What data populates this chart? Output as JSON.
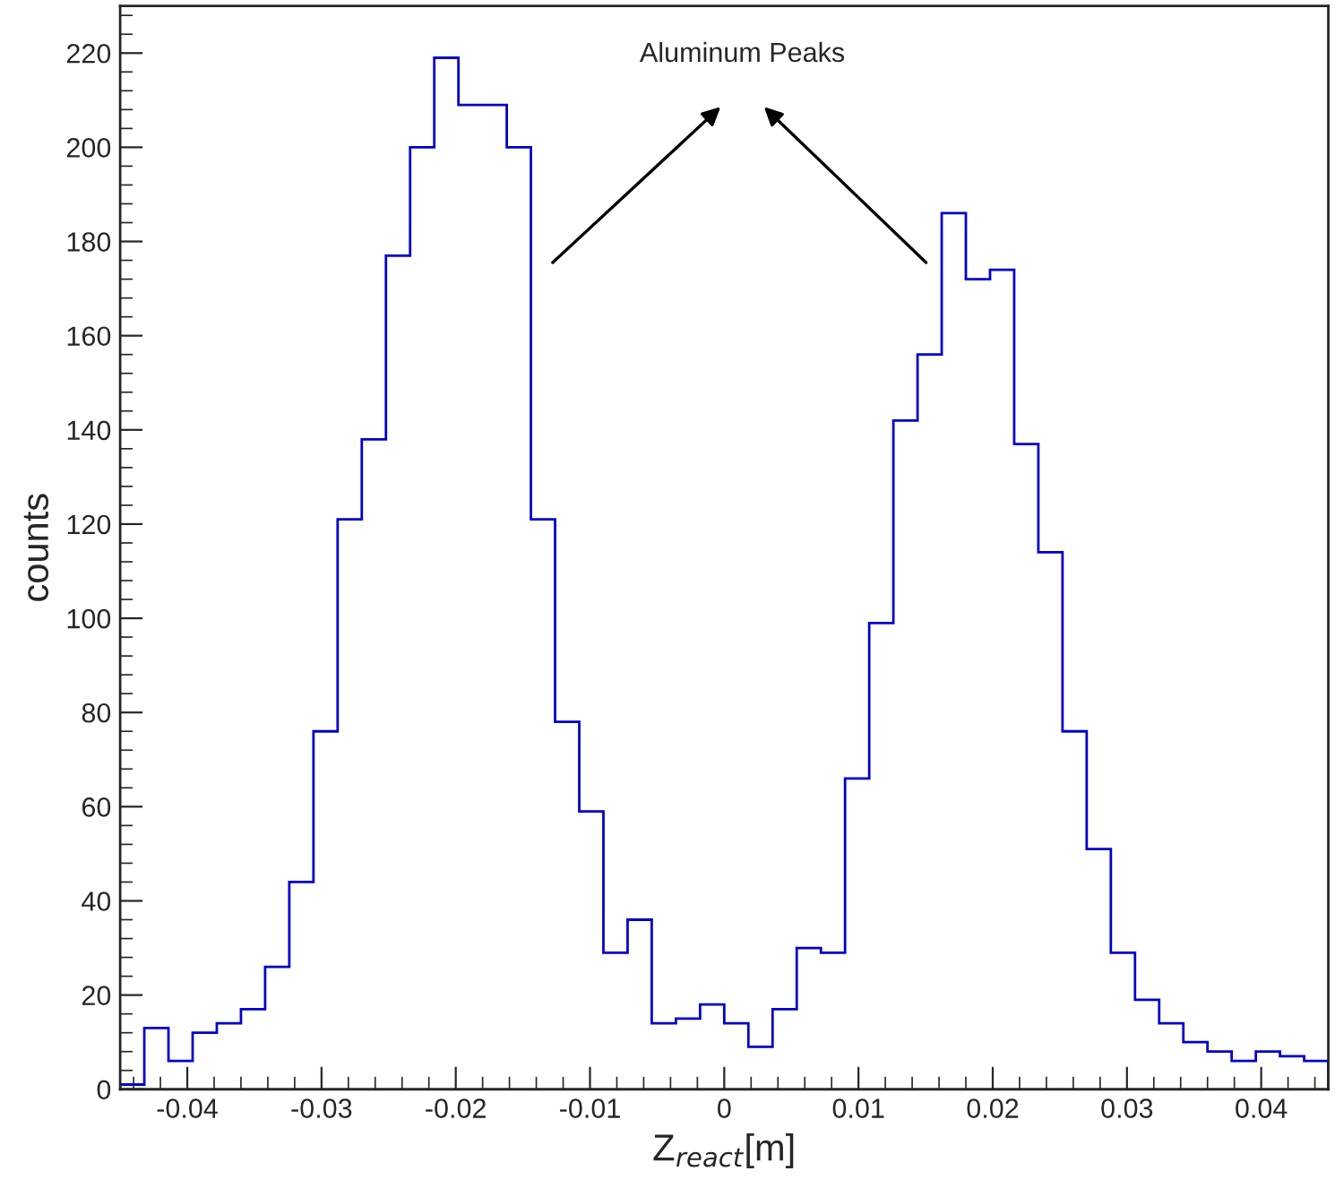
{
  "chart_data": {
    "type": "histogram",
    "xlabel": "Z$_{react}$[m]",
    "ylabel": "counts",
    "bins": [
      -0.045,
      -0.0432,
      -0.0414,
      -0.0396,
      -0.0378,
      -0.036,
      -0.0342,
      -0.0324,
      -0.0306,
      -0.0288,
      -0.027,
      -0.0252,
      -0.0234,
      -0.0216,
      -0.0198,
      -0.018,
      -0.0162,
      -0.0144,
      -0.0126,
      -0.0108,
      -0.009,
      -0.0072,
      -0.0054,
      -0.0036,
      -0.0018,
      0,
      0.0018,
      0.0036,
      0.0054,
      0.0072,
      0.009,
      0.0108,
      0.0126,
      0.0144,
      0.0162,
      0.018,
      0.0198,
      0.0216,
      0.0234,
      0.0252,
      0.027,
      0.0288,
      0.0306,
      0.0324,
      0.0342,
      0.036,
      0.0378,
      0.0396,
      0.0414,
      0.0432,
      0.045
    ],
    "values": [
      1,
      13,
      6,
      12,
      14,
      17,
      26,
      44,
      76,
      121,
      138,
      177,
      200,
      219,
      209,
      209,
      200,
      121,
      78,
      59,
      29,
      36,
      14,
      15,
      18,
      14,
      9,
      17,
      30,
      29,
      66,
      99,
      142,
      156,
      186,
      172,
      174,
      137,
      114,
      76,
      51,
      29,
      19,
      14,
      10,
      8,
      6,
      8,
      7,
      6
    ],
    "color": "#0000cc",
    "xlim": [
      -0.045,
      0.045
    ],
    "xticks": [
      -0.04,
      -0.03,
      -0.02,
      -0.01,
      0,
      0.01,
      0.02,
      0.03,
      0.04
    ],
    "ylim": [
      0,
      230
    ],
    "yticks": [
      0,
      20,
      40,
      60,
      80,
      100,
      120,
      140,
      160,
      180,
      200,
      220
    ],
    "grid": false,
    "annotations": [
      "Aluminum Peaks"
    ]
  }
}
